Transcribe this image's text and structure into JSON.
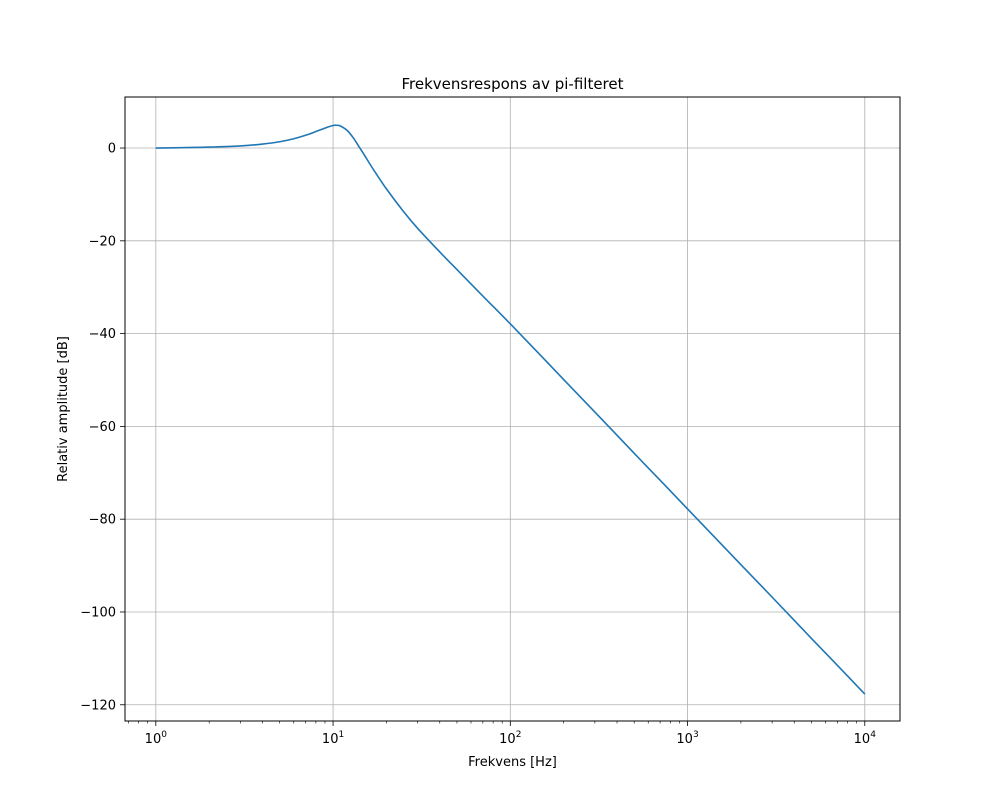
{
  "chart_data": {
    "type": "line",
    "title": "Frekvensrespons av pi-filteret",
    "xlabel": "Frekvens [Hz]",
    "ylabel": "Relativ amplitude [dB]",
    "xscale": "log",
    "xlim": [
      0.67,
      15800
    ],
    "ylim": [
      -123.5,
      11
    ],
    "grid": true,
    "x_ticks": [
      {
        "value": 1,
        "base": "10",
        "exp": "0"
      },
      {
        "value": 10,
        "base": "10",
        "exp": "1"
      },
      {
        "value": 100,
        "base": "10",
        "exp": "2"
      },
      {
        "value": 1000,
        "base": "10",
        "exp": "3"
      },
      {
        "value": 10000,
        "base": "10",
        "exp": "4"
      }
    ],
    "y_ticks": [
      {
        "value": 0,
        "label": "0"
      },
      {
        "value": -20,
        "label": "−20"
      },
      {
        "value": -40,
        "label": "−40"
      },
      {
        "value": -60,
        "label": "−60"
      },
      {
        "value": -80,
        "label": "−80"
      },
      {
        "value": -100,
        "label": "−100"
      },
      {
        "value": -120,
        "label": "−120"
      }
    ],
    "series": [
      {
        "color": "#1f77b4",
        "x": [
          1,
          1.5,
          2,
          3,
          4,
          5,
          6,
          7,
          8,
          9,
          10,
          10.5,
          11,
          12,
          13,
          14,
          15,
          17,
          20,
          25,
          30,
          40,
          50,
          70,
          100,
          150,
          200,
          300,
          500,
          700,
          1000,
          2000,
          3000,
          5000,
          7000,
          10000
        ],
        "y": [
          0,
          0.1,
          0.2,
          0.45,
          0.85,
          1.35,
          2.0,
          2.75,
          3.55,
          4.3,
          4.85,
          4.9,
          4.75,
          3.8,
          2.2,
          0.3,
          -1.5,
          -4.8,
          -8.8,
          -13.7,
          -17.3,
          -22.4,
          -26.2,
          -31.9,
          -37.9,
          -44.9,
          -49.9,
          -56.9,
          -65.8,
          -71.6,
          -77.8,
          -89.8,
          -96.8,
          -105.7,
          -111.5,
          -117.7
        ]
      }
    ]
  }
}
